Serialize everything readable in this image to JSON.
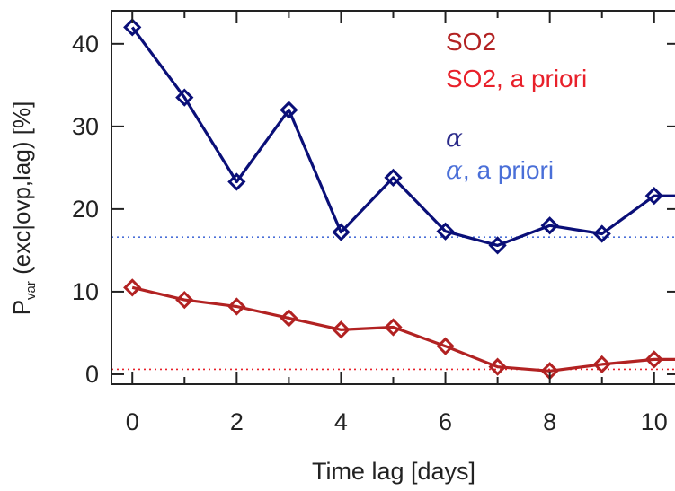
{
  "chart_data": {
    "type": "line",
    "xlabel": "Time lag [days]",
    "ylabel": {
      "main": "P",
      "subscript": "var",
      "rest": " (exc|ovp,lag) [%]"
    },
    "xlim": [
      -0.4,
      10.4
    ],
    "ylim": [
      -1.2,
      44
    ],
    "x_ticks": [
      0,
      2,
      4,
      6,
      8,
      10
    ],
    "y_ticks": [
      0,
      10,
      20,
      30,
      40
    ],
    "x_minor_ticks": [
      1,
      3,
      5,
      7,
      9
    ],
    "legend_position": "top-right",
    "series": [
      {
        "name": "α",
        "color": "#0a0f78",
        "marker": "diamond",
        "x": [
          0,
          1,
          2,
          3,
          4,
          5,
          6,
          7,
          8,
          9,
          10,
          10.4
        ],
        "y": [
          42.0,
          33.5,
          23.3,
          32.0,
          17.2,
          23.8,
          17.3,
          15.6,
          18.0,
          17.0,
          21.6,
          21.6
        ]
      },
      {
        "name": "SO2",
        "color": "#b22222",
        "marker": "diamond",
        "x": [
          0,
          1,
          2,
          3,
          4,
          5,
          6,
          7,
          8,
          9,
          10,
          10.4
        ],
        "y": [
          10.5,
          9.0,
          8.2,
          6.8,
          5.4,
          5.7,
          3.4,
          0.9,
          0.4,
          1.2,
          1.8,
          1.8
        ]
      }
    ],
    "reference_lines": [
      {
        "name": "α, a priori",
        "y": 16.6,
        "color": "#4a6fd8",
        "style": "dotted"
      },
      {
        "name": "SO2, a priori",
        "y": 0.6,
        "color": "#e8202a",
        "style": "dotted"
      }
    ],
    "legend": [
      {
        "label": "SO2",
        "color": "#b22222",
        "math": false
      },
      {
        "label": "SO2, a priori",
        "color": "#e8202a",
        "math": false
      },
      {
        "label_symbol": "α",
        "label_rest": "",
        "color": "#2a2a8a",
        "math": true
      },
      {
        "label_symbol": "α",
        "label_rest": ", a priori",
        "color": "#4a6fd8",
        "math": true
      }
    ]
  }
}
